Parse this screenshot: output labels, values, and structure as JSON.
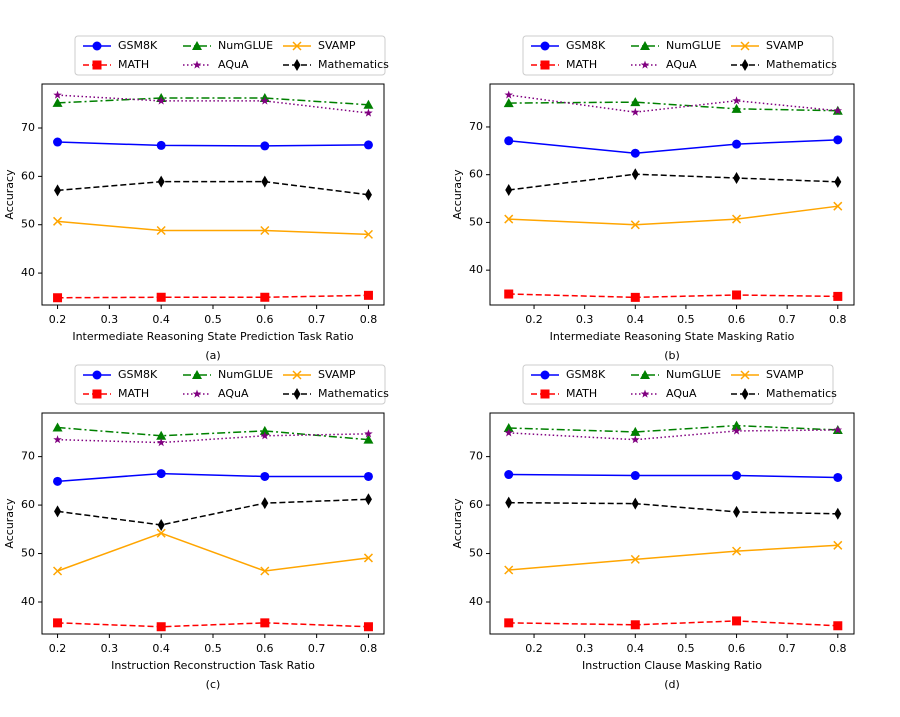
{
  "chart_data": [
    {
      "type": "line",
      "caption": "(a)",
      "xlabel": "Intermediate Reasoning State Prediction Task Ratio",
      "ylabel": "Accuracy",
      "x": [
        0.2,
        0.4,
        0.6,
        0.8
      ],
      "xlim": [
        0.17,
        0.83
      ],
      "xticks": [
        0.2,
        0.3,
        0.4,
        0.5,
        0.6,
        0.7,
        0.8
      ],
      "ylim": [
        33.4,
        79.1
      ],
      "yticks": [
        40,
        50,
        60,
        70
      ],
      "grid": false,
      "legend": "top",
      "series": [
        {
          "name": "GSM8K",
          "color": "#0000ff",
          "marker": "circle",
          "linestyle": "solid",
          "values": [
            67.1,
            66.4,
            66.3,
            66.5
          ]
        },
        {
          "name": "MATH",
          "color": "#ff0000",
          "marker": "square",
          "linestyle": "dashed",
          "values": [
            34.9,
            35.0,
            35.0,
            35.4
          ]
        },
        {
          "name": "NumGLUE",
          "color": "#008000",
          "marker": "triangle",
          "linestyle": "dashdot",
          "values": [
            75.2,
            76.2,
            76.2,
            74.8
          ]
        },
        {
          "name": "AQuA",
          "color": "#800080",
          "marker": "star",
          "linestyle": "dotted",
          "values": [
            76.8,
            75.6,
            75.6,
            73.1
          ]
        },
        {
          "name": "SVAMP",
          "color": "#ffa500",
          "marker": "x",
          "linestyle": "solid",
          "values": [
            50.7,
            48.8,
            48.8,
            48.0
          ]
        },
        {
          "name": "Mathematics",
          "color": "#000000",
          "marker": "diamond",
          "linestyle": "dashed",
          "values": [
            57.1,
            58.9,
            58.9,
            56.2
          ]
        }
      ]
    },
    {
      "type": "line",
      "caption": "(b)",
      "xlabel": "Intermediate Reasoning State Masking Ratio",
      "ylabel": "Accuracy",
      "x": [
        0.15,
        0.4,
        0.6,
        0.8
      ],
      "xlim": [
        0.113,
        0.832
      ],
      "xticks": [
        0.2,
        0.3,
        0.4,
        0.5,
        0.6,
        0.7,
        0.8
      ],
      "ylim": [
        32.7,
        79.0
      ],
      "yticks": [
        40,
        50,
        60,
        70
      ],
      "grid": false,
      "legend": "top",
      "series": [
        {
          "name": "GSM8K",
          "color": "#0000ff",
          "marker": "circle",
          "linestyle": "solid",
          "values": [
            67.1,
            64.5,
            66.4,
            67.3
          ]
        },
        {
          "name": "MATH",
          "color": "#ff0000",
          "marker": "square",
          "linestyle": "dashed",
          "values": [
            35.0,
            34.3,
            34.8,
            34.5
          ]
        },
        {
          "name": "NumGLUE",
          "color": "#008000",
          "marker": "triangle",
          "linestyle": "dashdot",
          "values": [
            75.0,
            75.2,
            73.8,
            73.4
          ]
        },
        {
          "name": "AQuA",
          "color": "#800080",
          "marker": "star",
          "linestyle": "dotted",
          "values": [
            76.7,
            73.1,
            75.5,
            73.4
          ]
        },
        {
          "name": "SVAMP",
          "color": "#ffa500",
          "marker": "x",
          "linestyle": "solid",
          "values": [
            50.7,
            49.5,
            50.7,
            53.4
          ]
        },
        {
          "name": "Mathematics",
          "color": "#000000",
          "marker": "diamond",
          "linestyle": "dashed",
          "values": [
            56.8,
            60.1,
            59.3,
            58.5
          ]
        }
      ]
    },
    {
      "type": "line",
      "caption": "(c)",
      "xlabel": "Instruction Reconstruction Task Ratio",
      "ylabel": "Accuracy",
      "x": [
        0.2,
        0.4,
        0.6,
        0.8
      ],
      "xlim": [
        0.17,
        0.83
      ],
      "xticks": [
        0.2,
        0.3,
        0.4,
        0.5,
        0.6,
        0.7,
        0.8
      ],
      "ylim": [
        33.4,
        79.0
      ],
      "yticks": [
        40,
        50,
        60,
        70
      ],
      "grid": false,
      "legend": "top",
      "series": [
        {
          "name": "GSM8K",
          "color": "#0000ff",
          "marker": "circle",
          "linestyle": "solid",
          "values": [
            64.9,
            66.5,
            65.9,
            65.9
          ]
        },
        {
          "name": "MATH",
          "color": "#ff0000",
          "marker": "square",
          "linestyle": "dashed",
          "values": [
            35.7,
            34.9,
            35.7,
            34.9
          ]
        },
        {
          "name": "NumGLUE",
          "color": "#008000",
          "marker": "triangle",
          "linestyle": "dashdot",
          "values": [
            76.0,
            74.3,
            75.3,
            73.5
          ]
        },
        {
          "name": "AQuA",
          "color": "#800080",
          "marker": "star",
          "linestyle": "dotted",
          "values": [
            73.5,
            72.9,
            74.3,
            74.7
          ]
        },
        {
          "name": "SVAMP",
          "color": "#ffa500",
          "marker": "x",
          "linestyle": "solid",
          "values": [
            46.4,
            54.2,
            46.4,
            49.1
          ]
        },
        {
          "name": "Mathematics",
          "color": "#000000",
          "marker": "diamond",
          "linestyle": "dashed",
          "values": [
            58.7,
            55.9,
            60.4,
            61.2
          ]
        }
      ]
    },
    {
      "type": "line",
      "caption": "(d)",
      "xlabel": "Instruction Clause Masking Ratio",
      "ylabel": "Accuracy",
      "x": [
        0.15,
        0.4,
        0.6,
        0.8
      ],
      "xlim": [
        0.113,
        0.832
      ],
      "xticks": [
        0.2,
        0.3,
        0.4,
        0.5,
        0.6,
        0.7,
        0.8
      ],
      "ylim": [
        33.4,
        79.0
      ],
      "yticks": [
        40,
        50,
        60,
        70
      ],
      "grid": false,
      "legend": "top",
      "series": [
        {
          "name": "GSM8K",
          "color": "#0000ff",
          "marker": "circle",
          "linestyle": "solid",
          "values": [
            66.3,
            66.1,
            66.1,
            65.7
          ]
        },
        {
          "name": "MATH",
          "color": "#ff0000",
          "marker": "square",
          "linestyle": "dashed",
          "values": [
            35.7,
            35.3,
            36.1,
            35.1
          ]
        },
        {
          "name": "NumGLUE",
          "color": "#008000",
          "marker": "triangle",
          "linestyle": "dashdot",
          "values": [
            75.9,
            75.1,
            76.4,
            75.5
          ]
        },
        {
          "name": "AQuA",
          "color": "#800080",
          "marker": "star",
          "linestyle": "dotted",
          "values": [
            74.9,
            73.5,
            75.3,
            75.5
          ]
        },
        {
          "name": "SVAMP",
          "color": "#ffa500",
          "marker": "x",
          "linestyle": "solid",
          "values": [
            46.6,
            48.8,
            50.5,
            51.7
          ]
        },
        {
          "name": "Mathematics",
          "color": "#000000",
          "marker": "diamond",
          "linestyle": "dashed",
          "values": [
            60.5,
            60.3,
            58.6,
            58.2
          ]
        }
      ]
    }
  ]
}
